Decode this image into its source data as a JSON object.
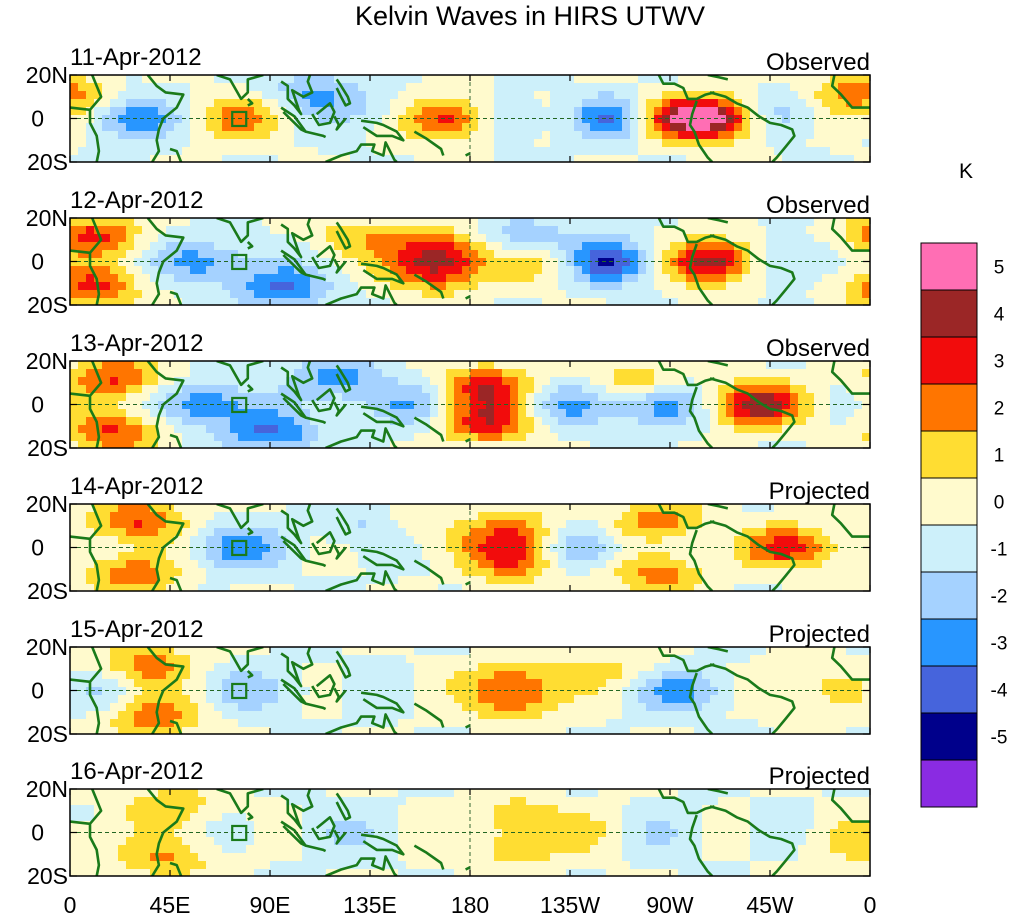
{
  "chart_data": {
    "type": "heatmap",
    "title": "Kelvin Waves in HIRS UTWV",
    "unit": "K",
    "x_range": [
      0,
      360
    ],
    "y_range": [
      -20,
      20
    ],
    "x_tick_labels": [
      "0",
      "45E",
      "90E",
      "135E",
      "180",
      "135W",
      "90W",
      "45W",
      "0"
    ],
    "y_tick_labels": [
      "20N",
      "0",
      "20S"
    ],
    "colorbar": {
      "levels": [
        -5,
        -4,
        -3,
        -2,
        -1,
        0,
        1,
        2,
        3,
        4,
        5
      ],
      "tick_labels": [
        "5",
        "4",
        "3",
        "2",
        "1",
        "0",
        "-1",
        "-2",
        "-3",
        "-4",
        "-5"
      ],
      "colors": [
        "#ff6eb4",
        "#9b2626",
        "#f20c0c",
        "#ff7500",
        "#ffdd32",
        "#fffacd",
        "#cdf0fa",
        "#a5d2ff",
        "#2896ff",
        "#4664dc",
        "#00008b",
        "#8a2be2"
      ]
    },
    "panels": [
      {
        "date": "11-Apr-2012",
        "status": "Observed",
        "features": [
          {
            "lon": 170,
            "lat": 0,
            "amp": 3.9
          },
          {
            "lon": 140,
            "lat": 3,
            "amp": -1.2
          },
          {
            "lon": 290,
            "lat": 0,
            "amp": 5.4
          },
          {
            "lon": 265,
            "lat": 0,
            "amp": 3.0
          },
          {
            "lon": 228,
            "lat": 0,
            "amp": 1.8
          },
          {
            "lon": 243,
            "lat": 0,
            "amp": -4.8
          },
          {
            "lon": 200,
            "lat": 0,
            "amp": -1.6
          },
          {
            "lon": 75,
            "lat": 0,
            "amp": 2.2
          },
          {
            "lon": 25,
            "lat": 0,
            "amp": -3.3
          },
          {
            "lon": 110,
            "lat": 12,
            "amp": -2.0
          },
          {
            "lon": 355,
            "lat": 12,
            "amp": 2.6
          },
          {
            "lon": 5,
            "lat": 0,
            "amp": 1.2
          },
          {
            "lon": 320,
            "lat": 2,
            "amp": -1.9
          }
        ]
      },
      {
        "date": "12-Apr-2012",
        "status": "Observed",
        "features": [
          {
            "lon": 165,
            "lat": 5,
            "amp": 3.5
          },
          {
            "lon": 165,
            "lat": -5,
            "amp": 3.0
          },
          {
            "lon": 290,
            "lat": 0,
            "amp": 5.2
          },
          {
            "lon": 242,
            "lat": 0,
            "amp": -4.5
          },
          {
            "lon": 218,
            "lat": 0,
            "amp": 2.2
          },
          {
            "lon": 10,
            "lat": 12,
            "amp": 3.2
          },
          {
            "lon": 10,
            "lat": -12,
            "amp": 3.2
          },
          {
            "lon": 60,
            "lat": 0,
            "amp": -2.5
          },
          {
            "lon": 95,
            "lat": -12,
            "amp": -3.0
          },
          {
            "lon": 205,
            "lat": 10,
            "amp": -2.0
          },
          {
            "lon": 320,
            "lat": 0,
            "amp": -2.0
          },
          {
            "lon": 128,
            "lat": 12,
            "amp": 1.6
          }
        ]
      },
      {
        "date": "13-Apr-2012",
        "status": "Observed",
        "features": [
          {
            "lon": 188,
            "lat": 8,
            "amp": 3.5
          },
          {
            "lon": 188,
            "lat": -8,
            "amp": 3.5
          },
          {
            "lon": 308,
            "lat": 0,
            "amp": 4.6
          },
          {
            "lon": 20,
            "lat": 12,
            "amp": 3.2
          },
          {
            "lon": 20,
            "lat": -12,
            "amp": 3.2
          },
          {
            "lon": 255,
            "lat": 10,
            "amp": 2.0
          },
          {
            "lon": 265,
            "lat": 0,
            "amp": -3.0
          },
          {
            "lon": 60,
            "lat": 0,
            "amp": -3.0
          },
          {
            "lon": 120,
            "lat": 12,
            "amp": -2.5
          },
          {
            "lon": 90,
            "lat": -13,
            "amp": -3.0
          },
          {
            "lon": 225,
            "lat": 0,
            "amp": -2.0
          },
          {
            "lon": 150,
            "lat": 0,
            "amp": -1.8
          }
        ]
      },
      {
        "date": "14-Apr-2012",
        "status": "Projected",
        "features": [
          {
            "lon": 200,
            "lat": 6,
            "amp": 3.0
          },
          {
            "lon": 200,
            "lat": -6,
            "amp": 3.0
          },
          {
            "lon": 325,
            "lat": 0,
            "amp": 3.5
          },
          {
            "lon": 30,
            "lat": 12,
            "amp": 3.2
          },
          {
            "lon": 28,
            "lat": -12,
            "amp": 2.8
          },
          {
            "lon": 265,
            "lat": -12,
            "amp": 2.5
          },
          {
            "lon": 265,
            "lat": 12,
            "amp": 2.5
          },
          {
            "lon": 230,
            "lat": 0,
            "amp": -2.4
          },
          {
            "lon": 75,
            "lat": 0,
            "amp": -2.5
          },
          {
            "lon": 135,
            "lat": 10,
            "amp": -1.8
          },
          {
            "lon": 150,
            "lat": 10,
            "amp": 1.5
          }
        ]
      },
      {
        "date": "15-Apr-2012",
        "status": "Projected",
        "features": [
          {
            "lon": 200,
            "lat": 5,
            "amp": 2.2
          },
          {
            "lon": 200,
            "lat": -5,
            "amp": 2.2
          },
          {
            "lon": 35,
            "lat": 12,
            "amp": 2.5
          },
          {
            "lon": 38,
            "lat": -12,
            "amp": 2.6
          },
          {
            "lon": 345,
            "lat": 0,
            "amp": 1.8
          },
          {
            "lon": 275,
            "lat": 0,
            "amp": -2.2
          },
          {
            "lon": 85,
            "lat": 0,
            "amp": -1.5
          },
          {
            "lon": 10,
            "lat": 0,
            "amp": -1.2
          },
          {
            "lon": 245,
            "lat": 10,
            "amp": 1.2
          }
        ]
      },
      {
        "date": "16-Apr-2012",
        "status": "Projected",
        "features": [
          {
            "lon": 200,
            "lat": 8,
            "amp": 1.6
          },
          {
            "lon": 200,
            "lat": -8,
            "amp": 1.6
          },
          {
            "lon": 43,
            "lat": -12,
            "amp": 2.0
          },
          {
            "lon": 45,
            "lat": 12,
            "amp": 1.8
          },
          {
            "lon": 265,
            "lat": 0,
            "amp": -1.2
          },
          {
            "lon": 240,
            "lat": 0,
            "amp": 1.2
          },
          {
            "lon": 355,
            "lat": -5,
            "amp": 1.4
          },
          {
            "lon": 120,
            "lat": 0,
            "amp": -0.9
          }
        ]
      }
    ]
  }
}
